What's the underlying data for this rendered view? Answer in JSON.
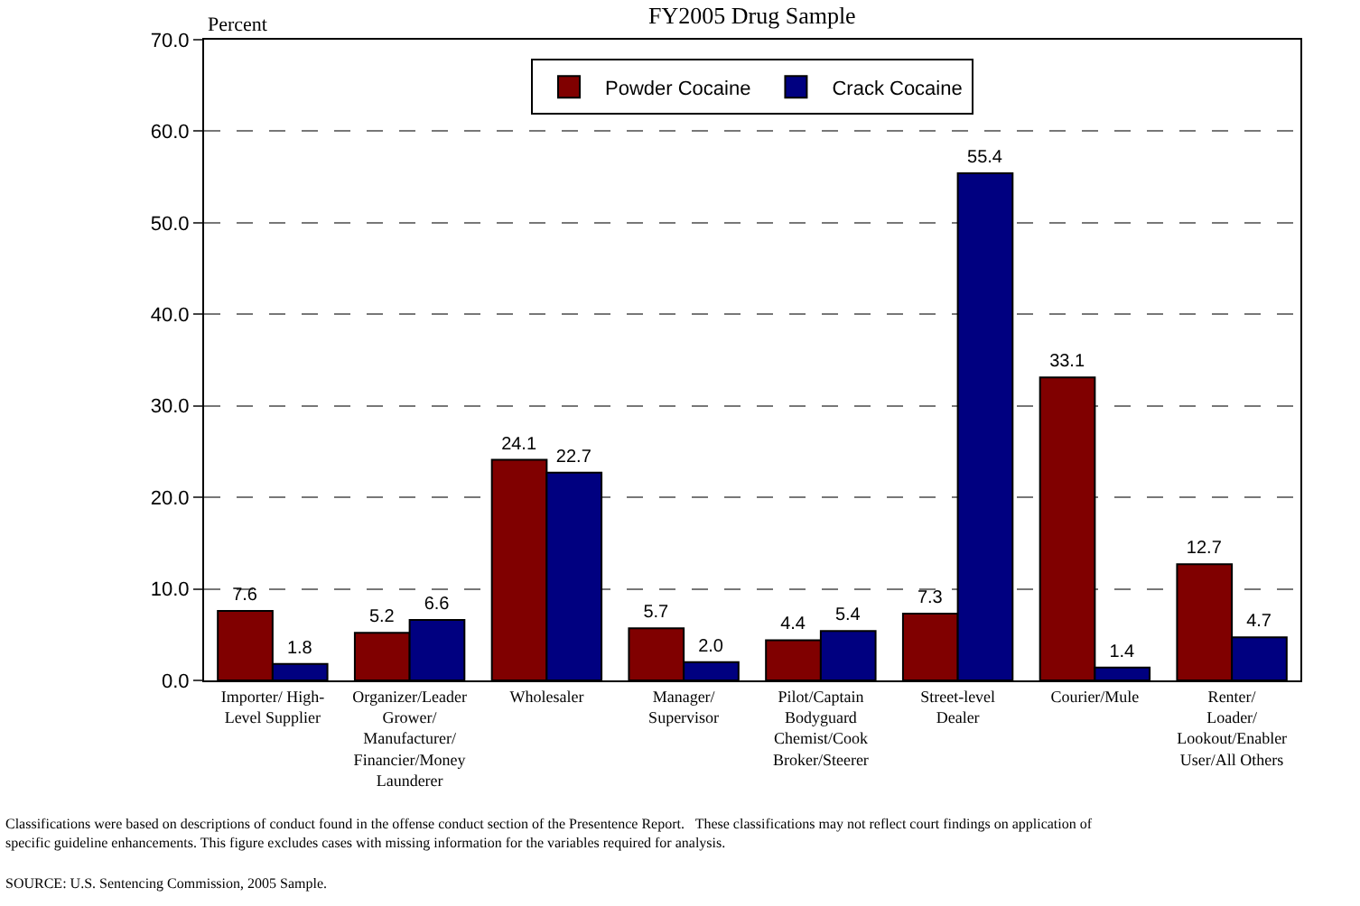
{
  "chart_data": {
    "type": "bar",
    "title": "FY2005 Drug Sample",
    "ylabel": "Percent",
    "categories": [
      "Importer/ High-\nLevel Supplier",
      "Organizer/Leader\nGrower/\nManufacturer/\nFinancier/Money\nLaunderer",
      "Wholesaler",
      "Manager/\nSupervisor",
      "Pilot/Captain\nBodyguard\nChemist/Cook\nBroker/Steerer",
      "Street-level\nDealer",
      "Courier/Mule",
      "Renter/\nLoader/\nLookout/Enabler\nUser/All Others"
    ],
    "series": [
      {
        "name": "Powder Cocaine",
        "color": "#800000",
        "values": [
          7.6,
          5.2,
          24.1,
          5.7,
          4.4,
          7.3,
          33.1,
          12.7
        ],
        "value_labels": [
          "7.6",
          "5.2",
          "24.1",
          "5.7",
          "4.4",
          "7.3",
          "33.1",
          "12.7"
        ]
      },
      {
        "name": "Crack Cocaine",
        "color": "#000080",
        "values": [
          1.8,
          6.6,
          22.7,
          2.0,
          5.4,
          55.4,
          1.4,
          4.7
        ],
        "value_labels": [
          "1.8",
          "6.6",
          "22.7",
          "2.0",
          "5.4",
          "55.4",
          "1.4",
          "4.7"
        ]
      }
    ],
    "ylim": [
      0,
      70
    ],
    "yticks": [
      {
        "value": 0,
        "label": "0.0"
      },
      {
        "value": 10,
        "label": "10.0"
      },
      {
        "value": 20,
        "label": "20.0"
      },
      {
        "value": 30,
        "label": "30.0"
      },
      {
        "value": 40,
        "label": "40.0"
      },
      {
        "value": 50,
        "label": "50.0"
      },
      {
        "value": 60,
        "label": "60.0"
      },
      {
        "value": 70,
        "label": "70.0"
      }
    ],
    "grid": "y",
    "legend": "top",
    "annotations": [
      "Classifications were based on descriptions of conduct found in the offense conduct section of the Presentence Report.   These classifications may not reflect court findings on application of\nspecific guideline enhancements. This figure excludes cases with missing information for the variables required for analysis.",
      "SOURCE: U.S. Sentencing Commission, 2005 Sample."
    ]
  }
}
